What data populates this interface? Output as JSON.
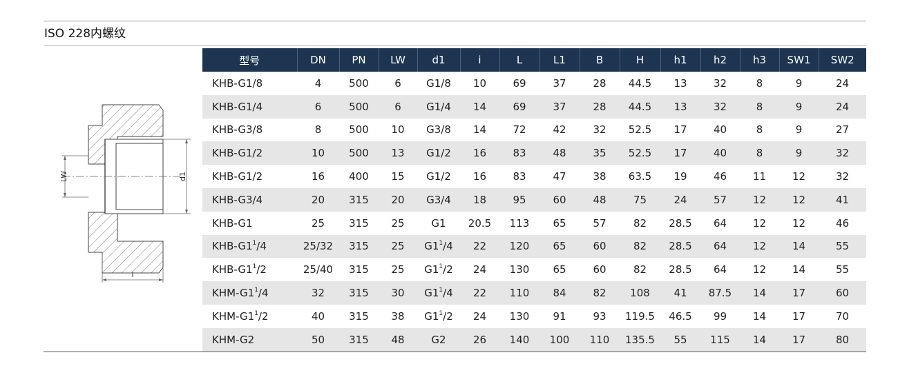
{
  "title": "ISO 228内螺纹",
  "drawing": {
    "label_lw": "LW",
    "label_d1": "d1",
    "label_i": "i"
  },
  "table": {
    "headers": [
      "型号",
      "DN",
      "PN",
      "LW",
      "d1",
      "i",
      "L",
      "L1",
      "B",
      "H",
      "h1",
      "h2",
      "h3",
      "SW1",
      "SW2"
    ],
    "rows": [
      [
        "KHB-G1/8",
        "4",
        "500",
        "6",
        "G1/8",
        "10",
        "69",
        "37",
        "28",
        "44.5",
        "13",
        "32",
        "8",
        "9",
        "24"
      ],
      [
        "KHB-G1/4",
        "6",
        "500",
        "6",
        "G1/4",
        "14",
        "69",
        "37",
        "28",
        "44.5",
        "13",
        "32",
        "8",
        "9",
        "24"
      ],
      [
        "KHB-G3/8",
        "8",
        "500",
        "10",
        "G3/8",
        "14",
        "72",
        "42",
        "32",
        "52.5",
        "17",
        "40",
        "8",
        "9",
        "27"
      ],
      [
        "KHB-G1/2",
        "10",
        "500",
        "13",
        "G1/2",
        "16",
        "83",
        "48",
        "35",
        "52.5",
        "17",
        "40",
        "8",
        "9",
        "32"
      ],
      [
        "KHB-G1/2",
        "16",
        "400",
        "15",
        "G1/2",
        "16",
        "83",
        "47",
        "38",
        "63.5",
        "19",
        "46",
        "11",
        "12",
        "32"
      ],
      [
        "KHB-G3/4",
        "20",
        "315",
        "20",
        "G3/4",
        "18",
        "95",
        "60",
        "48",
        "75",
        "24",
        "57",
        "12",
        "12",
        "41"
      ],
      [
        "KHB-G1",
        "25",
        "315",
        "25",
        "G1",
        "20.5",
        "113",
        "65",
        "57",
        "82",
        "28.5",
        "64",
        "12",
        "12",
        "46"
      ],
      [
        "KHB-G1¹/4",
        "25/32",
        "315",
        "25",
        "G1¹/4",
        "22",
        "120",
        "65",
        "60",
        "82",
        "28.5",
        "64",
        "12",
        "14",
        "55"
      ],
      [
        "KHB-G1¹/2",
        "25/40",
        "315",
        "25",
        "G1¹/2",
        "24",
        "130",
        "65",
        "60",
        "82",
        "28.5",
        "64",
        "12",
        "14",
        "55"
      ],
      [
        "KHM-G1¹/4",
        "32",
        "315",
        "30",
        "G1¹/4",
        "22",
        "110",
        "84",
        "82",
        "108",
        "41",
        "87.5",
        "14",
        "17",
        "60"
      ],
      [
        "KHM-G1¹/2",
        "40",
        "315",
        "38",
        "G1¹/2",
        "24",
        "130",
        "91",
        "93",
        "119.5",
        "46.5",
        "99",
        "14",
        "17",
        "70"
      ],
      [
        "KHM-G2",
        "50",
        "315",
        "48",
        "G2",
        "26",
        "140",
        "100",
        "110",
        "135.5",
        "55",
        "115",
        "14",
        "17",
        "80"
      ]
    ]
  }
}
